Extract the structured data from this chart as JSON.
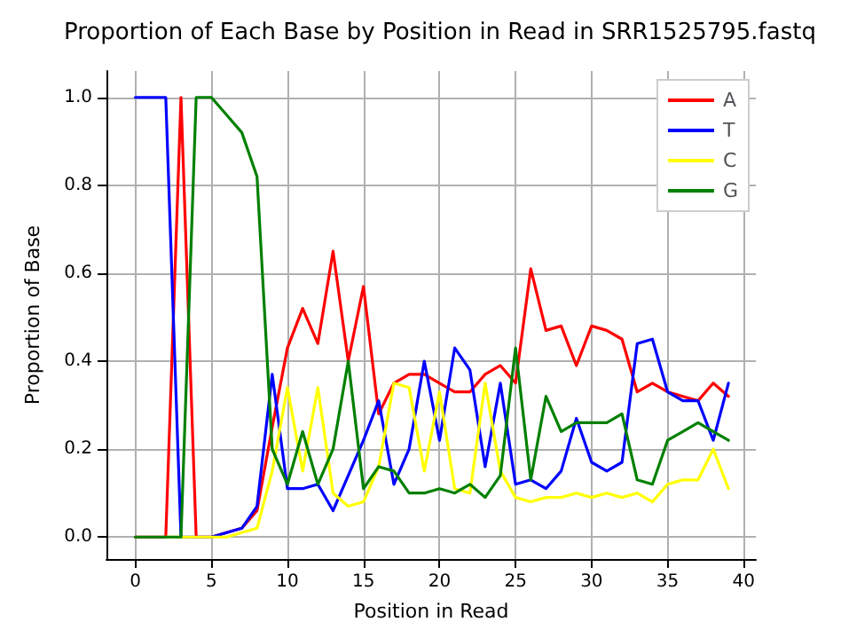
{
  "chart_data": {
    "type": "line",
    "title": "Proportion of Each Base by Position in Read in SRR1525795.fastq",
    "xlabel": "Position in Read",
    "ylabel": "Proportion of Base",
    "x": [
      0,
      1,
      2,
      3,
      4,
      5,
      6,
      7,
      8,
      9,
      10,
      11,
      12,
      13,
      14,
      15,
      16,
      17,
      18,
      19,
      20,
      21,
      22,
      23,
      24,
      25,
      26,
      27,
      28,
      29,
      30,
      31,
      32,
      33,
      34,
      35,
      36,
      37,
      38,
      39
    ],
    "series": [
      {
        "name": "A",
        "color": "#ff0000",
        "values": [
          0,
          0,
          0,
          1,
          0,
          0,
          0.01,
          0.02,
          0.06,
          0.25,
          0.43,
          0.52,
          0.44,
          0.65,
          0.4,
          0.57,
          0.28,
          0.35,
          0.37,
          0.37,
          0.35,
          0.33,
          0.33,
          0.37,
          0.39,
          0.35,
          0.61,
          0.47,
          0.48,
          0.39,
          0.48,
          0.47,
          0.45,
          0.33,
          0.35,
          0.33,
          0.32,
          0.31,
          0.35,
          0.32
        ]
      },
      {
        "name": "T",
        "color": "#0000ff",
        "values": [
          1,
          1,
          1,
          0,
          0,
          0,
          0.01,
          0.02,
          0.07,
          0.37,
          0.11,
          0.11,
          0.12,
          0.06,
          0.14,
          0.22,
          0.31,
          0.12,
          0.2,
          0.4,
          0.22,
          0.43,
          0.38,
          0.16,
          0.35,
          0.12,
          0.13,
          0.11,
          0.15,
          0.27,
          0.17,
          0.15,
          0.17,
          0.44,
          0.45,
          0.33,
          0.31,
          0.31,
          0.22,
          0.35
        ]
      },
      {
        "name": "C",
        "color": "#ffff00",
        "values": [
          null,
          null,
          0,
          0,
          0,
          0,
          0,
          0.01,
          0.02,
          0.15,
          0.34,
          0.15,
          0.34,
          0.1,
          0.07,
          0.08,
          0.16,
          0.35,
          0.34,
          0.15,
          0.33,
          0.11,
          0.1,
          0.35,
          0.15,
          0.09,
          0.08,
          0.09,
          0.09,
          0.1,
          0.09,
          0.1,
          0.09,
          0.1,
          0.08,
          0.12,
          0.13,
          0.13,
          0.2,
          0.11
        ]
      },
      {
        "name": "G",
        "color": "#008000",
        "values": [
          0,
          0,
          0,
          0,
          1,
          1,
          0.96,
          0.92,
          0.82,
          0.2,
          0.12,
          0.24,
          0.12,
          0.2,
          0.4,
          0.11,
          0.16,
          0.15,
          0.1,
          0.1,
          0.11,
          0.1,
          0.12,
          0.09,
          0.14,
          0.43,
          0.13,
          0.32,
          0.24,
          0.26,
          0.26,
          0.26,
          0.28,
          0.13,
          0.12,
          0.22,
          0.24,
          0.26,
          0.24,
          0.22
        ]
      }
    ],
    "xlim": [
      -1.9,
      40.8
    ],
    "xticks": [
      0,
      5,
      10,
      15,
      20,
      25,
      30,
      35,
      40
    ],
    "ylim": [
      -0.05,
      1.06
    ],
    "yticks": [
      {
        "value": 0,
        "label": "0.0"
      },
      0.2,
      0.4,
      0.6,
      0.8,
      {
        "value": 1,
        "label": "1.0"
      }
    ],
    "grid": true,
    "legend": "top right",
    "marker": "none",
    "line_style": "solid"
  }
}
